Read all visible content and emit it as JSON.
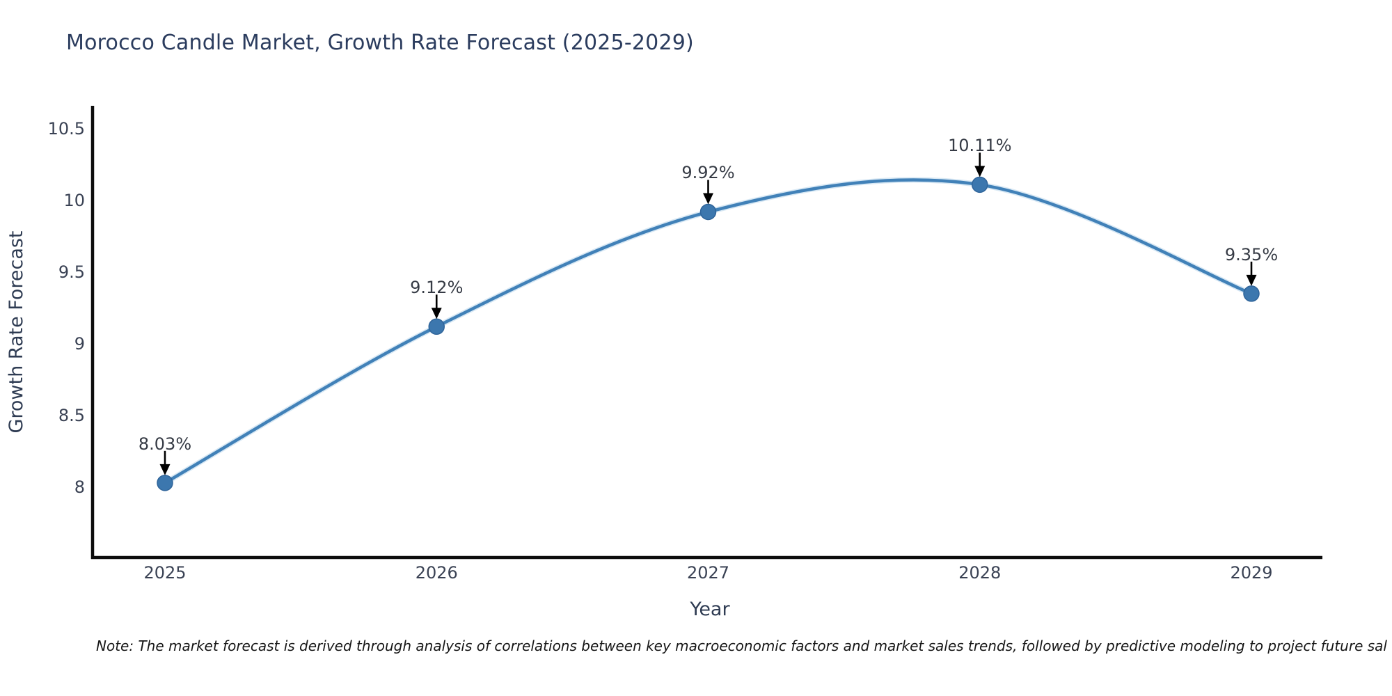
{
  "title": "Morocco Candle Market, Growth Rate Forecast (2025-2029)",
  "note": "Note: The market forecast is derived through analysis of correlations between key macroeconomic factors and market sales trends, followed by predictive modeling to project future sal",
  "chart_data": {
    "type": "line",
    "title": "Morocco Candle Market, Growth Rate Forecast (2025-2029)",
    "xlabel": "Year",
    "ylabel": "Growth Rate Forecast",
    "x": [
      2025,
      2026,
      2027,
      2028,
      2029
    ],
    "categories": [
      "2025",
      "2026",
      "2027",
      "2028",
      "2029"
    ],
    "values": [
      8.03,
      9.12,
      9.92,
      10.11,
      9.35
    ],
    "point_labels": [
      "8.03%",
      "9.12%",
      "9.92%",
      "10.11%",
      "9.35%"
    ],
    "yticks": [
      8,
      8.5,
      9,
      9.5,
      10,
      10.5
    ],
    "ytick_labels": [
      "8",
      "8.5",
      "9",
      "9.5",
      "10",
      "10.5"
    ],
    "ylim": [
      7.52,
      10.66
    ],
    "xlim": [
      2024.73,
      2029.26
    ],
    "grid": false,
    "legend": null,
    "line_color": "#4181b8",
    "line_halo_color": "#a9cbe7",
    "marker_color": "#3c77ae",
    "marker_edge_color": "#2f649a",
    "axis_color": "#0d0d0d",
    "annotation_arrow_color": "#000000",
    "curve_style": "smooth-spline",
    "marker_style": "circle"
  }
}
